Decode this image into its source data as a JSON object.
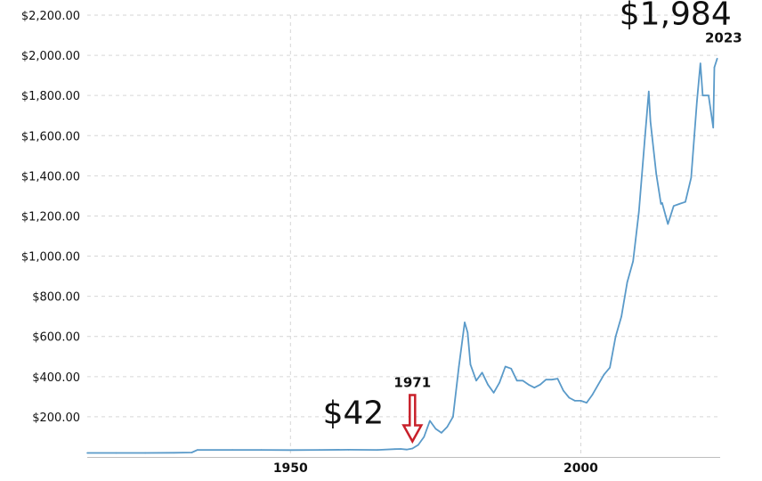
{
  "chart_data": {
    "type": "line",
    "title": "",
    "xlabel": "",
    "ylabel": "",
    "xlim": [
      1915,
      2024
    ],
    "ylim": [
      0,
      2200
    ],
    "x_ticks": [
      {
        "value": 1950,
        "label": "1950"
      },
      {
        "value": 2000,
        "label": "2000"
      }
    ],
    "y_ticks": [
      {
        "value": 200,
        "label": "$200.00"
      },
      {
        "value": 400,
        "label": "$400.00"
      },
      {
        "value": 600,
        "label": "$600.00"
      },
      {
        "value": 800,
        "label": "$800.00"
      },
      {
        "value": 1000,
        "label": "$1,000.00"
      },
      {
        "value": 1200,
        "label": "$1,200.00"
      },
      {
        "value": 1400,
        "label": "$1,400.00"
      },
      {
        "value": 1600,
        "label": "$1,600.00"
      },
      {
        "value": 1800,
        "label": "$1,800.00"
      },
      {
        "value": 2000,
        "label": "$2,000.00"
      },
      {
        "value": 2200,
        "label": "$2,200.00"
      }
    ],
    "grid": true,
    "legend": "none",
    "series": [
      {
        "color": "#5a9ac9",
        "points": [
          [
            1915,
            20
          ],
          [
            1920,
            20
          ],
          [
            1925,
            20
          ],
          [
            1930,
            21
          ],
          [
            1933,
            22
          ],
          [
            1934,
            35
          ],
          [
            1940,
            35
          ],
          [
            1945,
            35
          ],
          [
            1950,
            34
          ],
          [
            1955,
            35
          ],
          [
            1960,
            36
          ],
          [
            1965,
            35
          ],
          [
            1968,
            39
          ],
          [
            1969,
            40
          ],
          [
            1970,
            37
          ],
          [
            1971,
            42
          ],
          [
            1972,
            60
          ],
          [
            1973,
            100
          ],
          [
            1974,
            180
          ],
          [
            1975,
            140
          ],
          [
            1976,
            120
          ],
          [
            1977,
            150
          ],
          [
            1978,
            200
          ],
          [
            1979,
            450
          ],
          [
            1980,
            670
          ],
          [
            1980.5,
            620
          ],
          [
            1981,
            460
          ],
          [
            1982,
            380
          ],
          [
            1983,
            420
          ],
          [
            1984,
            360
          ],
          [
            1985,
            320
          ],
          [
            1986,
            370
          ],
          [
            1987,
            450
          ],
          [
            1988,
            440
          ],
          [
            1989,
            380
          ],
          [
            1990,
            380
          ],
          [
            1991,
            360
          ],
          [
            1992,
            345
          ],
          [
            1993,
            360
          ],
          [
            1994,
            385
          ],
          [
            1995,
            385
          ],
          [
            1996,
            390
          ],
          [
            1997,
            330
          ],
          [
            1998,
            295
          ],
          [
            1999,
            280
          ],
          [
            2000,
            280
          ],
          [
            2001,
            270
          ],
          [
            2002,
            310
          ],
          [
            2003,
            360
          ],
          [
            2004,
            410
          ],
          [
            2005,
            445
          ],
          [
            2006,
            600
          ],
          [
            2007,
            700
          ],
          [
            2008,
            870
          ],
          [
            2009,
            975
          ],
          [
            2010,
            1220
          ],
          [
            2011,
            1575
          ],
          [
            2011.7,
            1820
          ],
          [
            2012,
            1670
          ],
          [
            2013,
            1410
          ],
          [
            2013.8,
            1260
          ],
          [
            2014,
            1265
          ],
          [
            2015,
            1160
          ],
          [
            2016,
            1250
          ],
          [
            2017,
            1260
          ],
          [
            2018,
            1270
          ],
          [
            2019,
            1390
          ],
          [
            2020,
            1770
          ],
          [
            2020.6,
            1960
          ],
          [
            2021,
            1800
          ],
          [
            2022,
            1800
          ],
          [
            2022.8,
            1640
          ],
          [
            2023,
            1940
          ],
          [
            2023.5,
            1984
          ]
        ]
      }
    ],
    "annotations": [
      {
        "text": "$42",
        "x": 1971,
        "y": 42
      },
      {
        "text": "1971",
        "x": 1971,
        "y": 42
      },
      {
        "text": "$1,984",
        "x": 2023.5,
        "y": 1984
      },
      {
        "text": "2023",
        "x": 2023.5,
        "y": 1984
      }
    ]
  }
}
